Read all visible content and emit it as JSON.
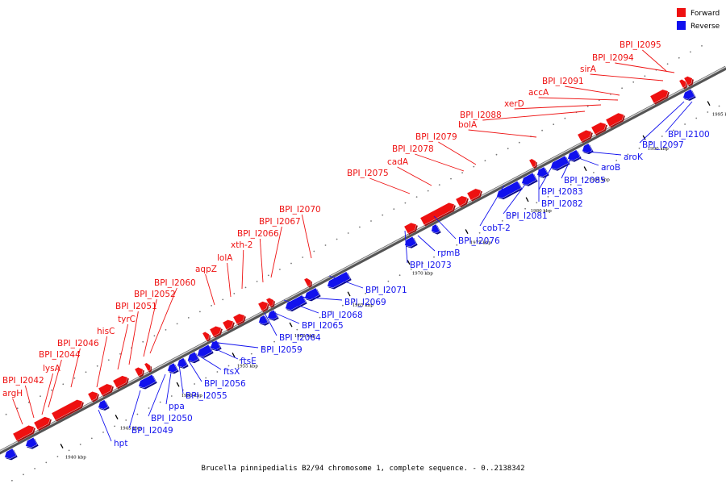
{
  "legend": {
    "forward_label": "Forward",
    "reverse_label": "Reverse",
    "forward_color": "#ee1111",
    "reverse_color": "#1111ee"
  },
  "caption": "Brucella pinnipedialis B2/94 chromosome 1, complete sequence. - 0..2138342",
  "scale_unit": "kbp",
  "ticks": [
    1940,
    1945,
    1950,
    1955,
    1960,
    1965,
    1970,
    1975,
    1980,
    1985,
    1990,
    1995
  ],
  "forward_labels": [
    "argH",
    "BPI_I2042",
    "lysA",
    "BPI_I2044",
    "BPI_I2046",
    "hisC",
    "tyrC",
    "BPI_I2051",
    "BPI_I2052",
    "BPI_I2060",
    "aqpZ",
    "lolA",
    "xth-2",
    "BPI_I2066",
    "BPI_I2067",
    "BPI_I2070",
    "BPI_I2075",
    "cadA",
    "BPI_I2078",
    "BPI_I2079",
    "bolA",
    "BPI_I2088",
    "xerD",
    "accA",
    "BPI_I2091",
    "sirA",
    "BPI_I2094",
    "BPI_I2095"
  ],
  "reverse_labels": [
    "hpt",
    "BPI_I2049",
    "BPI_I2050",
    "ppa",
    "BPI_I2055",
    "BPI_I2056",
    "ftsX",
    "ftsE",
    "BPI_I2059",
    "BPI_I2064",
    "BPI_I2065",
    "BPI_I2068",
    "BPI_I2069",
    "BPI_I2071",
    "BPI_I2073",
    "rpmB",
    "BPI_I2076",
    "cobT-2",
    "BPI_I2081",
    "BPI_I2082",
    "BPI_I2083",
    "BPI_I2085",
    "aroB",
    "aroK",
    "BPI_I2097",
    "BPI_I2100"
  ]
}
